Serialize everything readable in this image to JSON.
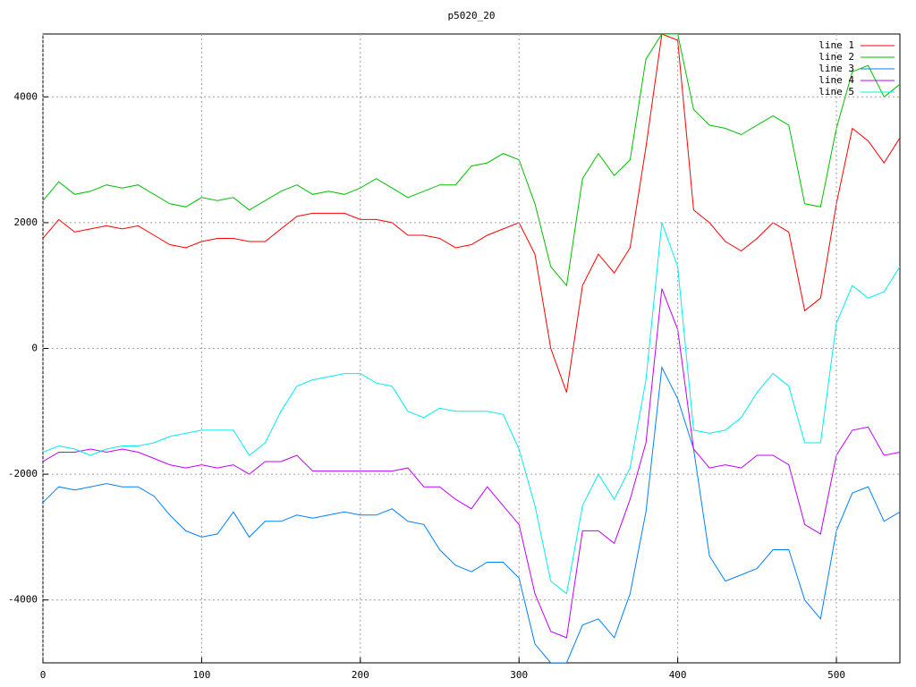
{
  "chart_data": {
    "type": "line",
    "title": "p5020_20",
    "x": [
      0,
      10,
      20,
      30,
      40,
      50,
      60,
      70,
      80,
      90,
      100,
      110,
      120,
      130,
      140,
      150,
      160,
      170,
      180,
      190,
      200,
      210,
      220,
      230,
      240,
      250,
      260,
      270,
      280,
      290,
      300,
      310,
      320,
      330,
      340,
      350,
      360,
      370,
      380,
      390,
      400,
      410,
      420,
      430,
      440,
      450,
      460,
      470,
      480,
      490,
      500,
      510,
      520,
      530,
      540
    ],
    "series": [
      {
        "name": "line 1",
        "color": "#ff0000",
        "values": [
          1750,
          2050,
          1850,
          1900,
          1950,
          1900,
          1950,
          1800,
          1650,
          1600,
          1700,
          1750,
          1750,
          1700,
          1700,
          1900,
          2100,
          2150,
          2150,
          2150,
          2050,
          2050,
          2000,
          1800,
          1800,
          1750,
          1600,
          1650,
          1800,
          1900,
          2000,
          1500,
          0,
          -700,
          1000,
          1500,
          1200,
          1600,
          3200,
          5000,
          4900,
          2200,
          2000,
          1700,
          1550,
          1750,
          2000,
          1850,
          600,
          800,
          2300,
          3500,
          3300,
          2950,
          3350
        ]
      },
      {
        "name": "line 2",
        "color": "#00c000",
        "values": [
          2350,
          2650,
          2450,
          2500,
          2600,
          2550,
          2600,
          2450,
          2300,
          2250,
          2400,
          2350,
          2400,
          2200,
          2350,
          2500,
          2600,
          2450,
          2500,
          2450,
          2550,
          2700,
          2550,
          2400,
          2500,
          2600,
          2600,
          2900,
          2950,
          3100,
          3000,
          2300,
          1300,
          1000,
          2700,
          3100,
          2750,
          3000,
          4600,
          5000,
          5000,
          3800,
          3550,
          3500,
          3400,
          3550,
          3700,
          3550,
          2300,
          2250,
          3500,
          4400,
          4500,
          4000,
          4200
        ]
      },
      {
        "name": "line 3",
        "color": "#0080ff",
        "values": [
          -2450,
          -2200,
          -2250,
          -2200,
          -2150,
          -2200,
          -2200,
          -2350,
          -2650,
          -2900,
          -3000,
          -2950,
          -2600,
          -3000,
          -2750,
          -2750,
          -2650,
          -2700,
          -2650,
          -2600,
          -2650,
          -2650,
          -2550,
          -2750,
          -2800,
          -3200,
          -3450,
          -3550,
          -3400,
          -3400,
          -3650,
          -4700,
          -5000,
          -5000,
          -4400,
          -4300,
          -4600,
          -3900,
          -2600,
          -300,
          -800,
          -1600,
          -3300,
          -3700,
          -3600,
          -3500,
          -3200,
          -3200,
          -4000,
          -4300,
          -2900,
          -2300,
          -2200,
          -2750,
          -2600
        ]
      },
      {
        "name": "line 4",
        "color": "#c000ff",
        "values": [
          -1800,
          -1650,
          -1650,
          -1600,
          -1650,
          -1600,
          -1650,
          -1750,
          -1850,
          -1900,
          -1850,
          -1900,
          -1850,
          -2000,
          -1800,
          -1800,
          -1700,
          -1950,
          -1950,
          -1950,
          -1950,
          -1950,
          -1950,
          -1900,
          -2200,
          -2200,
          -2400,
          -2550,
          -2200,
          -2500,
          -2800,
          -3900,
          -4500,
          -4600,
          -2900,
          -2900,
          -3100,
          -2400,
          -1500,
          950,
          300,
          -1600,
          -1900,
          -1850,
          -1900,
          -1700,
          -1700,
          -1850,
          -2800,
          -2950,
          -1700,
          -1300,
          -1250,
          -1700,
          -1650
        ]
      },
      {
        "name": "line 5",
        "color": "#00eeee",
        "values": [
          -1650,
          -1550,
          -1600,
          -1700,
          -1600,
          -1550,
          -1550,
          -1500,
          -1400,
          -1350,
          -1300,
          -1300,
          -1300,
          -1700,
          -1500,
          -1000,
          -600,
          -500,
          -450,
          -400,
          -400,
          -550,
          -600,
          -1000,
          -1100,
          -950,
          -1000,
          -1000,
          -1000,
          -1050,
          -1600,
          -2500,
          -3700,
          -3900,
          -2500,
          -2000,
          -2400,
          -1900,
          -500,
          2000,
          1300,
          -1300,
          -1350,
          -1300,
          -1100,
          -700,
          -400,
          -600,
          -1500,
          -1500,
          400,
          1000,
          800,
          900,
          1300
        ]
      }
    ],
    "xlim": [
      0,
      540
    ],
    "ylim": [
      -5000,
      5000
    ],
    "xticks": [
      0,
      100,
      200,
      300,
      400,
      500
    ],
    "yticks": [
      -4000,
      -2000,
      0,
      2000,
      4000
    ],
    "grid": true
  }
}
